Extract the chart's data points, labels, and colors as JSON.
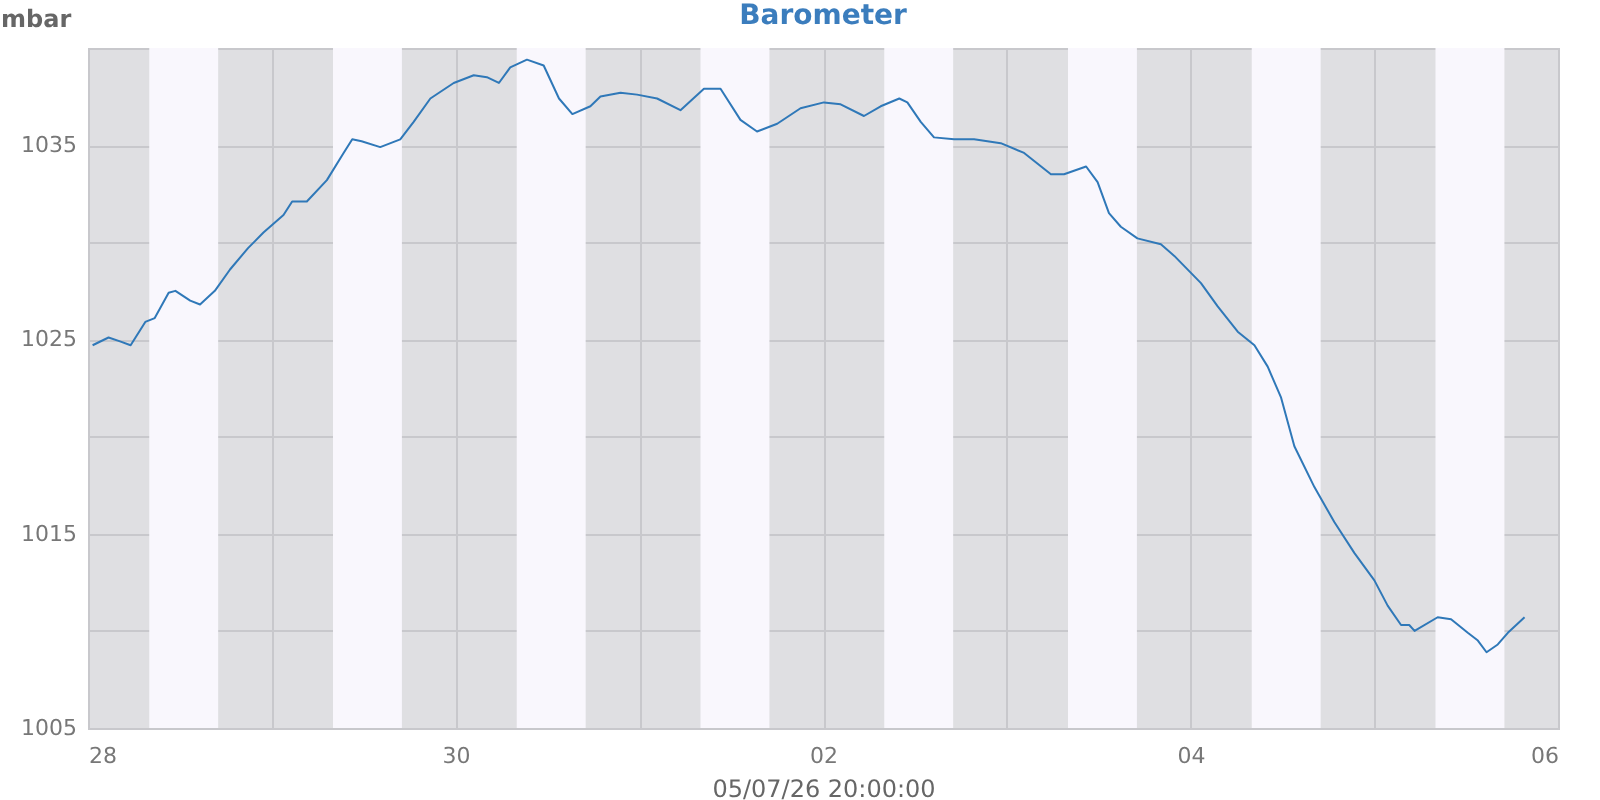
{
  "chart_data": {
    "type": "line",
    "title": "Barometer",
    "ylabel": "mbar",
    "xlabel": "05/07/26 20:00:00",
    "x": [
      "--06-28T00:36",
      "--06-28T02:41",
      "--06-28T04:11",
      "--06-28T05:34",
      "--06-28T07:29",
      "--06-28T08:43",
      "--06-28T10:32",
      "--06-28T11:25",
      "--06-28T13:21",
      "--06-28T14:38",
      "--06-28T16:34",
      "--06-28T18:33",
      "--06-28T20:54",
      "--06-28T22:55",
      "--06-29T01:32",
      "--06-29T02:40",
      "--06-29T04:35",
      "--06-29T07:12",
      "--06-29T09:23",
      "--06-29T10:31",
      "--06-29T11:44",
      "--06-29T14:10",
      "--06-29T16:47",
      "--06-29T18:32",
      "--06-29T20:43",
      "--06-29T23:46",
      "--06-30T02:23",
      "--06-30T04:06",
      "--06-30T05:40",
      "--06-30T07:09",
      "--06-30T09:20",
      "--06-30T11:31",
      "--06-30T13:31",
      "--06-30T15:16",
      "--06-30T17:37",
      "--06-30T18:56",
      "--06-30T21:33",
      "--06-30T23:43",
      "--07-01T02:20",
      "--07-01T05:23",
      "--07-01T08:27",
      "--07-01T10:37",
      "--07-01T13:13",
      "--07-01T15:23",
      "--07-01T18:01",
      "--07-01T21:04",
      "--07-02T00:07",
      "--07-02T02:18",
      "--07-02T05:21",
      "--07-02T07:32",
      "--07-02T09:58",
      "--07-02T11:01",
      "--07-02T12:46",
      "--07-02T14:30",
      "--07-02T17:07",
      "--07-02T19:44",
      "--07-02T23:13",
      "--07-03T02:16",
      "--07-03T05:46",
      "--07-03T07:29",
      "--07-03T10:22",
      "--07-03T11:52",
      "--07-03T13:21",
      "--07-03T14:54",
      "--07-03T17:04",
      "--07-03T20:08",
      "--07-03T21:53",
      "--07-04T01:22",
      "--07-04T03:33",
      "--07-04T06:10",
      "--07-04T08:21",
      "--07-04T10:05",
      "--07-04T11:50",
      "--07-04T13:34",
      "--07-04T16:11",
      "--07-04T18:47",
      "--07-04T21:25",
      "--07-05T00:01",
      "--07-05T01:45",
      "--07-05T03:30",
      "--07-05T04:34",
      "--07-05T05:16",
      "--07-05T08:17",
      "--07-05T10:02",
      "--07-05T12:13",
      "--07-05T13:32",
      "--07-05T14:40",
      "--07-05T16:08",
      "--07-05T17:27",
      "--07-05T19:38"
    ],
    "series": [
      {
        "color": "#2f78b8",
        "values": [
          1024.7,
          1025.1,
          1024.9,
          1024.7,
          1025.9,
          1026.1,
          1027.4,
          1027.5,
          1027.0,
          1026.8,
          1027.5,
          1028.6,
          1029.7,
          1030.5,
          1031.4,
          1032.1,
          1032.1,
          1033.2,
          1034.6,
          1035.3,
          1035.2,
          1034.9,
          1035.3,
          1036.2,
          1037.4,
          1038.2,
          1038.6,
          1038.5,
          1038.2,
          1039.0,
          1039.4,
          1039.1,
          1037.4,
          1036.6,
          1037.0,
          1037.5,
          1037.7,
          1037.6,
          1037.4,
          1036.8,
          1037.9,
          1037.9,
          1036.3,
          1035.7,
          1036.1,
          1036.9,
          1037.2,
          1037.1,
          1036.5,
          1037.0,
          1037.4,
          1037.2,
          1036.2,
          1035.4,
          1035.3,
          1035.3,
          1035.1,
          1034.6,
          1033.5,
          1033.5,
          1033.9,
          1033.1,
          1031.5,
          1030.8,
          1030.2,
          1029.9,
          1029.3,
          1027.9,
          1026.7,
          1025.4,
          1024.7,
          1023.6,
          1022.0,
          1019.5,
          1017.4,
          1015.6,
          1014.0,
          1012.6,
          1011.3,
          1010.3,
          1010.3,
          1010.0,
          1010.7,
          1010.6,
          1009.9,
          1009.5,
          1008.9,
          1009.3,
          1009.9,
          1010.7
        ]
      }
    ],
    "xlim": [
      "--06-28",
      "--07-06"
    ],
    "xticks": [
      {
        "value": "--06-28",
        "label": "28"
      },
      {
        "value": "--06-29",
        "label": null
      },
      {
        "value": "--06-30",
        "label": "30"
      },
      {
        "value": "--07-01",
        "label": null
      },
      {
        "value": "--07-02",
        "label": "02"
      },
      {
        "value": "--07-03",
        "label": null
      },
      {
        "value": "--07-04",
        "label": "04"
      },
      {
        "value": "--07-05",
        "label": null
      },
      {
        "value": "--07-06",
        "label": "06"
      }
    ],
    "ylim": [
      1005,
      1040
    ],
    "yticks": [
      1005,
      {
        "value": 1010,
        "label": null
      },
      1015,
      {
        "value": 1020,
        "label": null
      },
      1025,
      {
        "value": 1030,
        "label": null
      },
      1035
    ],
    "grid": true,
    "bands": [
      {
        "axis": "x",
        "from": "--06-28T08:00",
        "to": "--06-28T17:00",
        "color": "#f9f7fd"
      },
      {
        "axis": "x",
        "from": "--06-29T08:00",
        "to": "--06-29T17:00",
        "color": "#f9f7fd"
      },
      {
        "axis": "x",
        "from": "--06-30T08:00",
        "to": "--06-30T17:00",
        "color": "#f9f7fd"
      },
      {
        "axis": "x",
        "from": "--07-01T08:00",
        "to": "--07-01T17:00",
        "color": "#f9f7fd"
      },
      {
        "axis": "x",
        "from": "--07-02T08:00",
        "to": "--07-02T17:00",
        "color": "#f9f7fd"
      },
      {
        "axis": "x",
        "from": "--07-03T08:00",
        "to": "--07-03T17:00",
        "color": "#f9f7fd"
      },
      {
        "axis": "x",
        "from": "--07-04T08:00",
        "to": "--07-04T17:00",
        "color": "#f9f7fd"
      },
      {
        "axis": "x",
        "from": "--07-05T08:00",
        "to": "--07-05T17:00",
        "color": "#f9f7fd"
      }
    ]
  }
}
